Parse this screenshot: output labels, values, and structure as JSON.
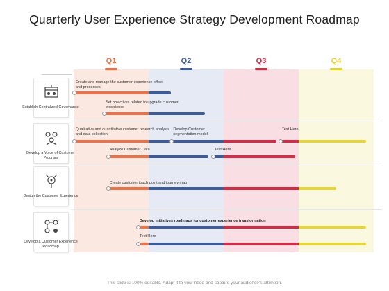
{
  "title": "Quarterly User Experience Strategy Development Roadmap",
  "quarters": [
    {
      "label": "Q1",
      "color": "#e8734a",
      "bg": "#fbe9e1"
    },
    {
      "label": "Q2",
      "color": "#3e5b9a",
      "bg": "#e5eaf5"
    },
    {
      "label": "Q3",
      "color": "#cf2e46",
      "bg": "#f9dfe3"
    },
    {
      "label": "Q4",
      "color": "#e6d53a",
      "bg": "#fbf8e0"
    }
  ],
  "categories": [
    {
      "label": "Establish Centralized Governance",
      "icon": "governance-icon"
    },
    {
      "label": "Develop a Voice of Customer Program",
      "icon": "customer-voice-icon"
    },
    {
      "label": "Design the Customer Experience",
      "icon": "experience-design-icon"
    },
    {
      "label": "Develop a Customer Experience Roadmap",
      "icon": "roadmap-icon"
    }
  ],
  "tasks": [
    {
      "text": "Create and manage the customer experience office and processes",
      "start": 0.0,
      "end": 1.3
    },
    {
      "text": "Set objectives related to upgrade customer experience",
      "start": 0.4,
      "end": 1.75
    },
    {
      "text": "Qualitative and quantitative customer research analysis and data collection",
      "start": 0.0,
      "end": 1.3
    },
    {
      "text": "Develop Customer segmentation model",
      "start": 1.3,
      "end": 2.7
    },
    {
      "text": "Text Here",
      "start": 2.75,
      "end": 3.9
    },
    {
      "text": "Analyze Customer Data",
      "start": 0.45,
      "end": 1.8
    },
    {
      "text": "Text Here",
      "start": 1.85,
      "end": 2.95
    },
    {
      "text": "Create customer touch point and journey map",
      "start": 0.45,
      "end": 3.5
    },
    {
      "text": "Develop initiatives roadmaps for customer experience transformation",
      "start": 0.85,
      "end": 3.9
    },
    {
      "text": "Text Here",
      "start": 0.85,
      "end": 3.9
    }
  ],
  "footer": "This slide is 100% editable. Adapt it to your need and capture your audience’s attention."
}
